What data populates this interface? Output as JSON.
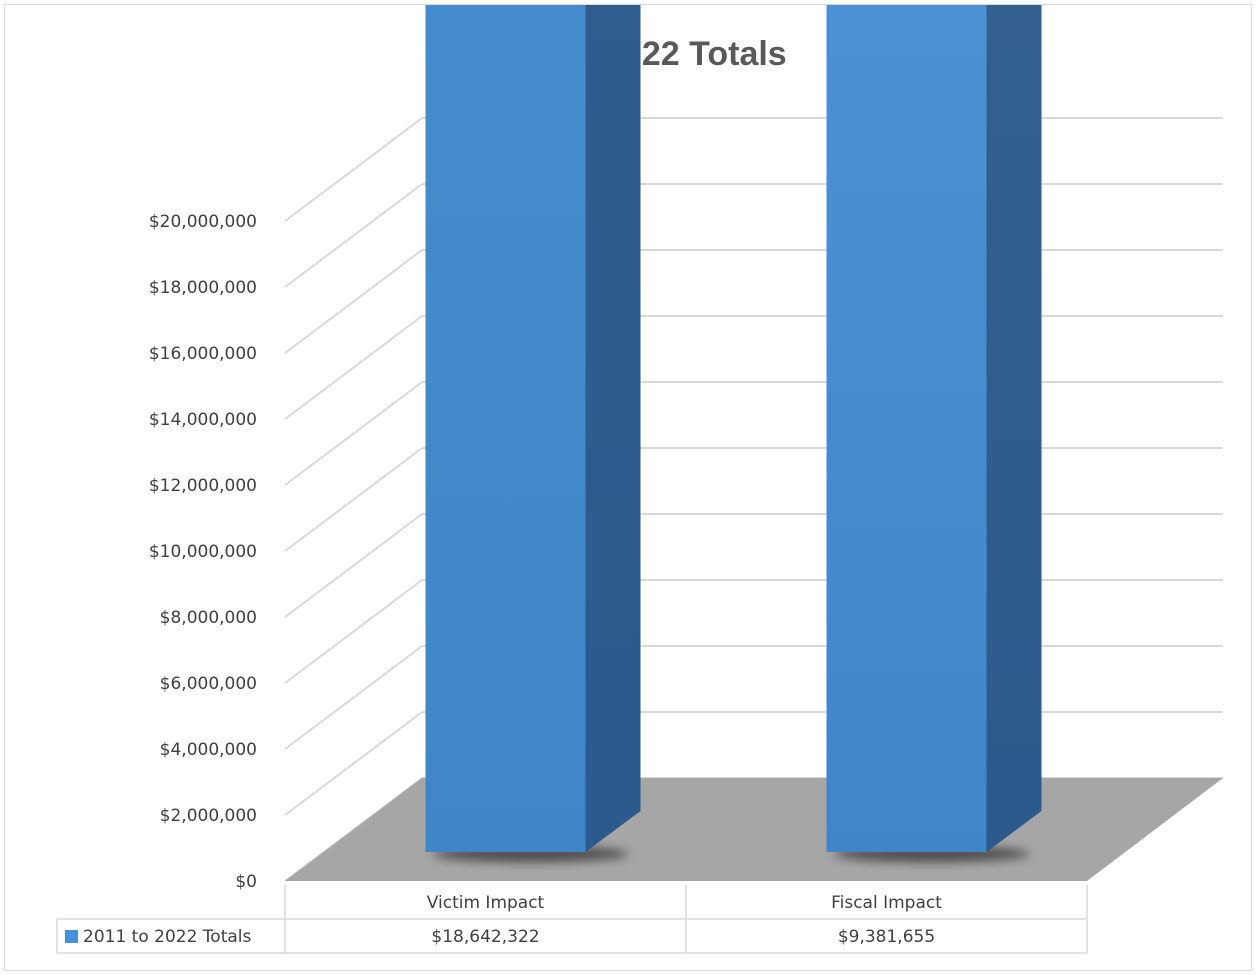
{
  "chart_data": {
    "type": "bar",
    "title": "2011 to 2022 Totals",
    "categories": [
      "Victim Impact",
      "Fiscal Impact"
    ],
    "series": [
      {
        "name": "2011 to 2022 Totals",
        "values": [
          18642322,
          9381655
        ],
        "color": "#4a90d9"
      }
    ],
    "data_labels": [
      "$18,642,322",
      "$9,381,655"
    ],
    "table_values": [
      "$18,642,322",
      "$9,381,655"
    ],
    "y_ticks": [
      "$0",
      "$2,000,000",
      "$4,000,000",
      "$6,000,000",
      "$8,000,000",
      "$10,000,000",
      "$12,000,000",
      "$14,000,000",
      "$16,000,000",
      "$18,000,000",
      "$20,000,000"
    ],
    "ylim": [
      0,
      20000000
    ],
    "y_step": 2000000,
    "style": "3d-column",
    "grid": true,
    "data_table": true,
    "legend": "data-table-key",
    "floor_color": "#a6a6a6",
    "gridline_color": "#d9d9d9"
  }
}
